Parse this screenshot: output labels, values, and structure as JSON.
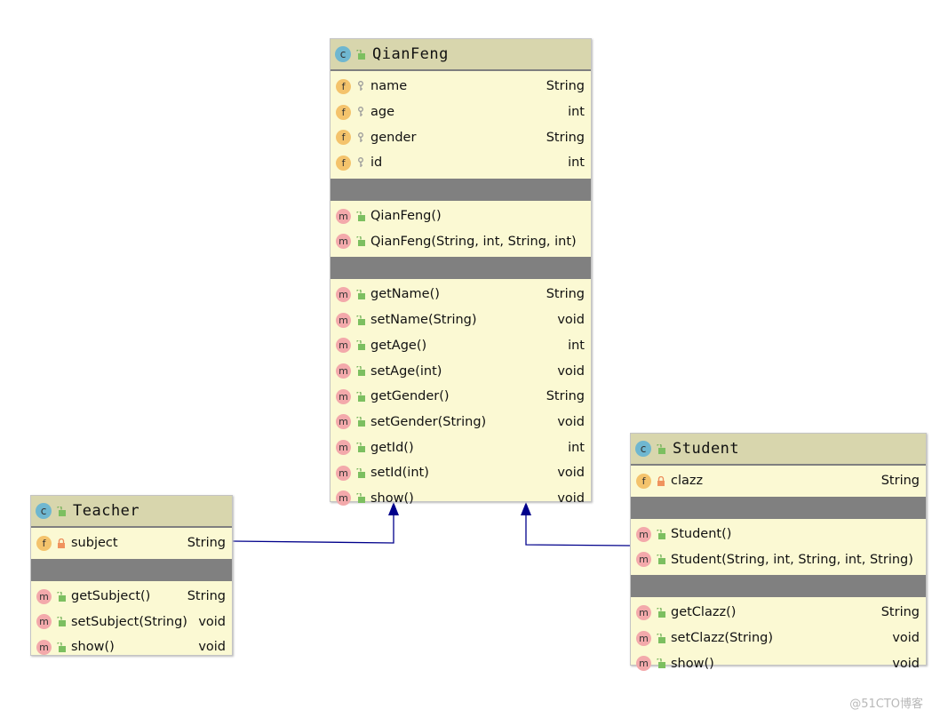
{
  "colors": {
    "connector": "#00008b",
    "header": "#d8d6ad",
    "body": "#fbf9d3",
    "separator": "#808080"
  },
  "classes": {
    "qianfeng": {
      "name": "QianFeng",
      "fields": [
        {
          "name": "name",
          "type": "String",
          "vis": "package"
        },
        {
          "name": "age",
          "type": "int",
          "vis": "package"
        },
        {
          "name": "gender",
          "type": "String",
          "vis": "package"
        },
        {
          "name": "id",
          "type": "int",
          "vis": "package"
        }
      ],
      "constructors": [
        {
          "name": "QianFeng()",
          "type": ""
        },
        {
          "name": "QianFeng(String, int, String, int)",
          "type": ""
        }
      ],
      "methods": [
        {
          "name": "getName()",
          "type": "String"
        },
        {
          "name": "setName(String)",
          "type": "void"
        },
        {
          "name": "getAge()",
          "type": "int"
        },
        {
          "name": "setAge(int)",
          "type": "void"
        },
        {
          "name": "getGender()",
          "type": "String"
        },
        {
          "name": "setGender(String)",
          "type": "void"
        },
        {
          "name": "getId()",
          "type": "int"
        },
        {
          "name": "setId(int)",
          "type": "void"
        },
        {
          "name": "show()",
          "type": "void"
        }
      ]
    },
    "teacher": {
      "name": "Teacher",
      "fields": [
        {
          "name": "subject",
          "type": "String",
          "vis": "private"
        }
      ],
      "constructors": [],
      "methods": [
        {
          "name": "getSubject()",
          "type": "String"
        },
        {
          "name": "setSubject(String)",
          "type": "void"
        },
        {
          "name": "show()",
          "type": "void"
        }
      ]
    },
    "student": {
      "name": "Student",
      "fields": [
        {
          "name": "clazz",
          "type": "String",
          "vis": "private"
        }
      ],
      "constructors": [
        {
          "name": "Student()",
          "type": ""
        },
        {
          "name": "Student(String, int, String, int, String)",
          "type": ""
        }
      ],
      "methods": [
        {
          "name": "getClazz()",
          "type": "String"
        },
        {
          "name": "setClazz(String)",
          "type": "void"
        },
        {
          "name": "show()",
          "type": "void"
        }
      ]
    }
  },
  "relations": [
    {
      "from": "Teacher",
      "to": "QianFeng",
      "kind": "extends"
    },
    {
      "from": "Student",
      "to": "QianFeng",
      "kind": "extends"
    }
  ],
  "watermark": "@51CTO博客"
}
